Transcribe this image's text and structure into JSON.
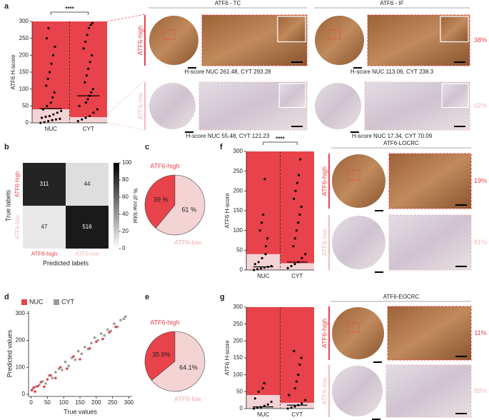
{
  "chart_data": [
    {
      "type": "strip",
      "ylabel": "ATF6 H-score",
      "categories": [
        "NUC",
        "CYT"
      ],
      "ylim": [
        0,
        300
      ],
      "yticks": [
        0,
        50,
        100,
        150,
        200,
        250,
        300
      ],
      "high_cutoffs": [
        40,
        17
      ],
      "means": [
        42,
        80
      ],
      "high_color": "#e8424a",
      "low_color": "#f4d3d5",
      "annotation": "****",
      "points": [
        [
          0,
          2,
          5,
          8,
          10,
          12,
          15,
          18,
          20,
          25,
          30,
          35,
          40,
          50,
          60,
          75,
          90,
          110,
          130,
          150,
          175,
          200,
          225,
          250,
          280
        ],
        [
          5,
          10,
          15,
          20,
          30,
          40,
          50,
          60,
          70,
          80,
          90,
          100,
          120,
          140,
          160,
          180,
          200,
          220,
          240,
          260,
          280,
          290,
          295
        ]
      ]
    },
    {
      "type": "heatmap",
      "xlabel": "Predicted labels",
      "ylabel": "True labels",
      "categories": [
        "ATF6-high",
        "ATF6-low"
      ],
      "category_colors": [
        "#e8424a",
        "#f2b9bd"
      ],
      "values": [
        [
          311,
          44
        ],
        [
          47,
          516
        ]
      ],
      "colorbar_label": "% of row total",
      "clim": [
        0,
        100
      ],
      "cticks": [
        0,
        20,
        40,
        60,
        80,
        100
      ]
    },
    {
      "type": "pie",
      "categories": [
        "ATF6-high",
        "ATF6-low"
      ],
      "values": [
        39,
        61
      ],
      "value_labels": [
        "39 %",
        "61 %"
      ],
      "colors": [
        "#e8424a",
        "#f4d3d5"
      ]
    },
    {
      "type": "scatter",
      "xlabel": "True values",
      "ylabel": "Predicted values",
      "xlim": [
        -8,
        310
      ],
      "ylim": [
        -8,
        310
      ],
      "xticks": [
        0,
        50,
        100,
        150,
        200,
        250,
        300
      ],
      "yticks": [
        0,
        100,
        200,
        300
      ],
      "series": [
        {
          "name": "NUC",
          "color": "#e8424a",
          "x": [
            2,
            8,
            12,
            20,
            30,
            40,
            50,
            60,
            75,
            90,
            110,
            130,
            150,
            180,
            200,
            220,
            240,
            260
          ],
          "y": [
            15,
            25,
            10,
            30,
            45,
            28,
            55,
            70,
            60,
            100,
            95,
            140,
            130,
            170,
            195,
            205,
            230,
            250
          ]
        },
        {
          "name": "CYT",
          "color": "#9a9a9a",
          "x": [
            5,
            15,
            25,
            35,
            45,
            55,
            65,
            75,
            85,
            95,
            105,
            115,
            125,
            135,
            145,
            155,
            165,
            175,
            185,
            195,
            205,
            215,
            225,
            235,
            245,
            255,
            265,
            275,
            285,
            290
          ],
          "y": [
            20,
            28,
            35,
            48,
            40,
            70,
            60,
            82,
            95,
            90,
            120,
            105,
            135,
            128,
            160,
            150,
            175,
            168,
            190,
            210,
            200,
            225,
            218,
            240,
            235,
            262,
            250,
            275,
            280,
            288
          ]
        }
      ]
    },
    {
      "type": "pie",
      "categories": [
        "ATF6-high",
        "ATF6-low"
      ],
      "values": [
        35.9,
        64.1
      ],
      "value_labels": [
        "35.9%",
        "64.1%"
      ],
      "colors": [
        "#e8424a",
        "#f4d3d5"
      ]
    },
    {
      "type": "strip",
      "ylabel": "ATF6 H-score",
      "categories": [
        "NUC",
        "CYT"
      ],
      "ylim": [
        0,
        300
      ],
      "yticks": [
        0,
        50,
        100,
        150,
        200,
        250,
        300
      ],
      "high_cutoffs": [
        40,
        17
      ],
      "means": [
        8,
        20
      ],
      "high_color": "#e8424a",
      "low_color": "#f4d3d5",
      "annotation": "****",
      "points": [
        [
          0,
          2,
          4,
          6,
          8,
          10,
          15,
          20,
          30,
          40,
          60,
          80,
          100,
          120,
          140,
          230
        ],
        [
          5,
          10,
          15,
          20,
          30,
          40,
          60,
          80,
          100,
          120,
          140,
          160,
          180,
          200,
          220,
          240,
          280
        ]
      ]
    },
    {
      "type": "strip",
      "ylabel": "ATF6 H-score",
      "categories": [
        "NUC",
        "CYT"
      ],
      "ylim": [
        0,
        300
      ],
      "yticks": [
        0,
        50,
        100,
        150,
        200,
        250,
        300
      ],
      "high_cutoffs": [
        40,
        17
      ],
      "means": [
        5,
        10
      ],
      "high_color": "#e8424a",
      "low_color": "#f4d3d5",
      "points": [
        [
          0,
          2,
          4,
          8,
          12,
          20,
          30,
          50,
          60,
          75
        ],
        [
          0,
          3,
          6,
          10,
          15,
          25,
          40,
          60,
          80,
          100,
          130,
          150,
          170
        ]
      ]
    }
  ],
  "panel_letters": [
    "a",
    "b",
    "c",
    "d",
    "e",
    "f",
    "g"
  ],
  "row_labels": [
    "ATF6-high",
    "ATF6-low"
  ],
  "image_panels": [
    {
      "title": "ATF6 - TC",
      "captions": [
        "H-score NUC 261.48, CYT 293.28",
        "H-score NUC 55.48, CYT 121.23"
      ]
    },
    {
      "title": "ATF6 - IF",
      "captions": [
        "H-score NUC 113.06, CYT 238.3",
        "H-score NUC 17.34, CYT 70.09"
      ],
      "percents": [
        "38%",
        "62%"
      ]
    },
    {
      "title": "ATF6-LOCRC",
      "percents": [
        "19%",
        "81%"
      ]
    },
    {
      "title": "ATF6-EOCRC",
      "percents": [
        "11%",
        "89%"
      ]
    }
  ]
}
